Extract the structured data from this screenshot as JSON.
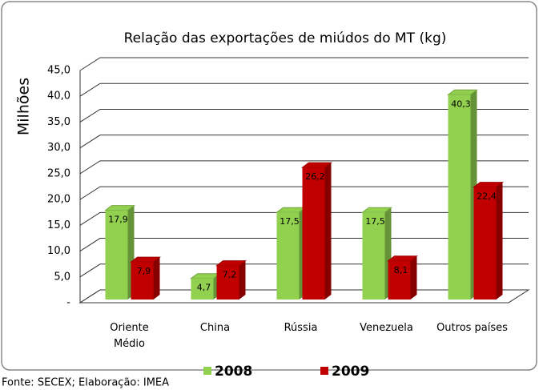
{
  "chart_data": {
    "type": "bar",
    "title": "Relação das exportações de miúdos do MT (kg)",
    "y_label": "Milhões",
    "source": "Fonte: SECEX; Elaboração: IMEA",
    "categories": [
      "Oriente Médio",
      "China",
      "Rússia",
      "Venezuela",
      "Outros países"
    ],
    "series": [
      {
        "name": "2008",
        "color": "#92d050",
        "values": [
          17.9,
          4.7,
          17.5,
          17.5,
          40.3
        ],
        "value_labels": [
          "17,9",
          "4,7",
          "17,5",
          "17,5",
          "40,3"
        ]
      },
      {
        "name": "2009",
        "color": "#c00000",
        "values": [
          7.9,
          7.2,
          26.2,
          8.1,
          22.4
        ],
        "value_labels": [
          "7,9",
          "7,2",
          "26,2",
          "8,1",
          "22,4"
        ]
      }
    ],
    "ylim": [
      0,
      45
    ],
    "yticks": [
      {
        "value": 0,
        "label": "-"
      },
      {
        "value": 5,
        "label": "5,0"
      },
      {
        "value": 10,
        "label": "10,0"
      },
      {
        "value": 15,
        "label": "15,0"
      },
      {
        "value": 20,
        "label": "20,0"
      },
      {
        "value": 25,
        "label": "25,0"
      },
      {
        "value": 30,
        "label": "30,0"
      },
      {
        "value": 35,
        "label": "35,0"
      },
      {
        "value": 40,
        "label": "40,0"
      },
      {
        "value": 45,
        "label": "45,0"
      }
    ],
    "grid": true,
    "legend": "bottom"
  }
}
